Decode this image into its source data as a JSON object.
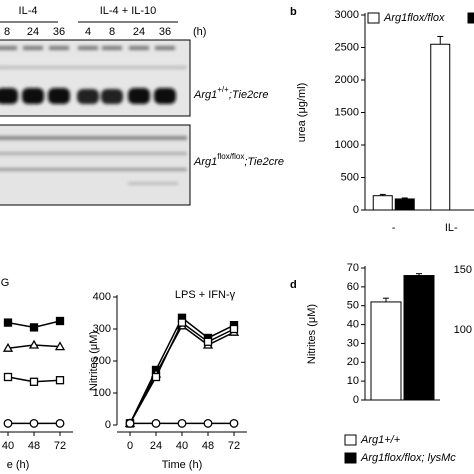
{
  "blot": {
    "groups": [
      "IL-4",
      "IL-4 + IL-10"
    ],
    "times": [
      "8",
      "24",
      "36",
      "4",
      "8",
      "24",
      "36"
    ],
    "unit": "(h)",
    "rows": [
      {
        "gene": "Arg1",
        "genotype": "+/+",
        "suffix": ";Tie2cre"
      },
      {
        "gene": "Arg1",
        "genotype": "flox/flox",
        "suffix": ";Tie2cre"
      }
    ]
  },
  "chart_data": [
    {
      "type": "bar",
      "panel": "b",
      "ylabel": "urea (μg/ml)",
      "categories": [
        "-",
        "IL-"
      ],
      "series": [
        {
          "name": "Arg1flox/flox",
          "color": "#ffffff",
          "values": [
            220,
            2550
          ],
          "errors": [
            20,
            120
          ]
        },
        {
          "color": "#000000",
          "values": [
            170,
            null
          ],
          "errors": [
            15,
            null
          ]
        }
      ],
      "ylim": [
        0,
        3000
      ],
      "yticks": [
        0,
        500,
        1000,
        1500,
        2000,
        2500,
        3000
      ]
    },
    {
      "type": "line",
      "title": "G",
      "xlabel": "e (h)",
      "categories": [
        "40",
        "48",
        "72"
      ],
      "ylim": [
        0,
        400
      ],
      "series": [
        {
          "marker": "square",
          "color": "#000000",
          "marker_fill": "#000000",
          "values": [
            320,
            305,
            325
          ]
        },
        {
          "marker": "triangle",
          "color": "#000000",
          "marker_fill": "#ffffff",
          "values": [
            240,
            250,
            245
          ]
        },
        {
          "marker": "square",
          "color": "#000000",
          "marker_fill": "#ffffff",
          "values": [
            150,
            135,
            140
          ]
        },
        {
          "marker": "circle",
          "color": "#000000",
          "marker_fill": "#ffffff",
          "values": [
            5,
            5,
            5
          ]
        }
      ]
    },
    {
      "type": "line",
      "title": "LPS + IFN-γ",
      "ylabel": "Nitrites (μM)",
      "xlabel": "Time (h)",
      "categories": [
        "0",
        "24",
        "40",
        "48",
        "72"
      ],
      "ylim": [
        0,
        400
      ],
      "yticks": [
        0,
        100,
        200,
        300,
        400
      ],
      "series": [
        {
          "marker": "square",
          "color": "#000000",
          "marker_fill": "#000000",
          "values": [
            5,
            172,
            335,
            272,
            312
          ]
        },
        {
          "marker": "triangle",
          "color": "#000000",
          "marker_fill": "#ffffff",
          "values": [
            5,
            160,
            310,
            250,
            290
          ]
        },
        {
          "marker": "square",
          "color": "#000000",
          "marker_fill": "#ffffff",
          "values": [
            5,
            150,
            320,
            260,
            300
          ]
        },
        {
          "marker": "circle",
          "color": "#000000",
          "marker_fill": "#ffffff",
          "values": [
            5,
            5,
            5,
            5,
            5
          ]
        }
      ]
    },
    {
      "type": "bar",
      "panel": "d",
      "ylabel": "Nitrites (μM)",
      "categories": [
        null
      ],
      "series": [
        {
          "name": "Arg1+/+",
          "color": "#ffffff",
          "values": [
            52
          ],
          "errors": [
            2
          ]
        },
        {
          "name": "Arg1flox/flox; lysMc",
          "color": "#000000",
          "values": [
            66
          ],
          "errors": [
            1
          ]
        }
      ],
      "ylim": [
        0,
        70
      ],
      "yticks": [
        0,
        10,
        20,
        30,
        40,
        50,
        60,
        70
      ]
    },
    {
      "type": "axis",
      "ylim": [
        0,
        150
      ],
      "yticks": [
        100,
        150
      ]
    }
  ]
}
